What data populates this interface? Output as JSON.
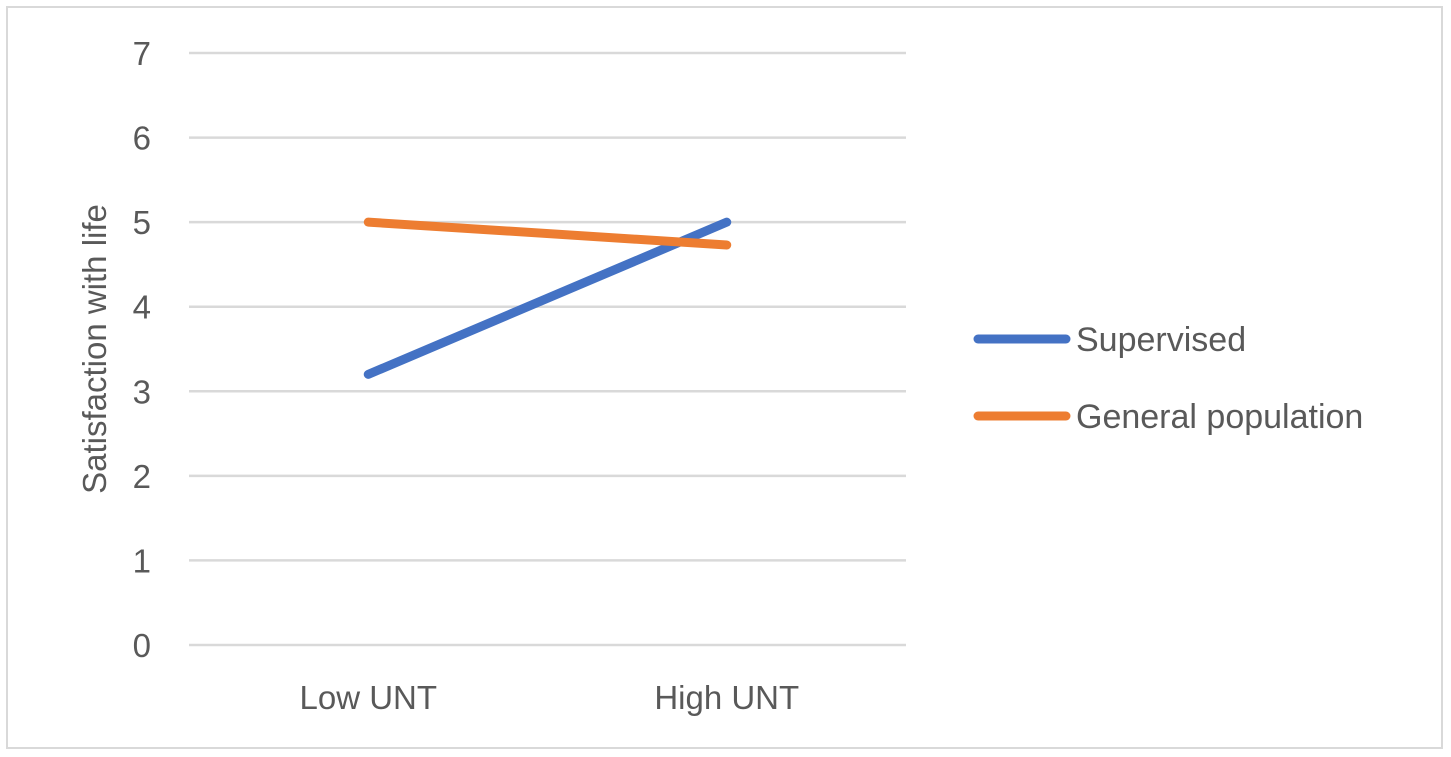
{
  "chart_data": {
    "type": "line",
    "title": "",
    "xlabel": "",
    "ylabel": "Satisfaction with life",
    "categories": [
      "Low UNT",
      "High UNT"
    ],
    "ylim": [
      0,
      7
    ],
    "yticks": [
      "0",
      "1",
      "2",
      "3",
      "4",
      "5",
      "6",
      "7"
    ],
    "grid": true,
    "legend_position": "right",
    "series": [
      {
        "name": "Supervised",
        "values": [
          3.2,
          5.0
        ],
        "color": "#4472c4"
      },
      {
        "name": "General population",
        "values": [
          5.0,
          4.73
        ],
        "color": "#ed7d31"
      }
    ]
  }
}
